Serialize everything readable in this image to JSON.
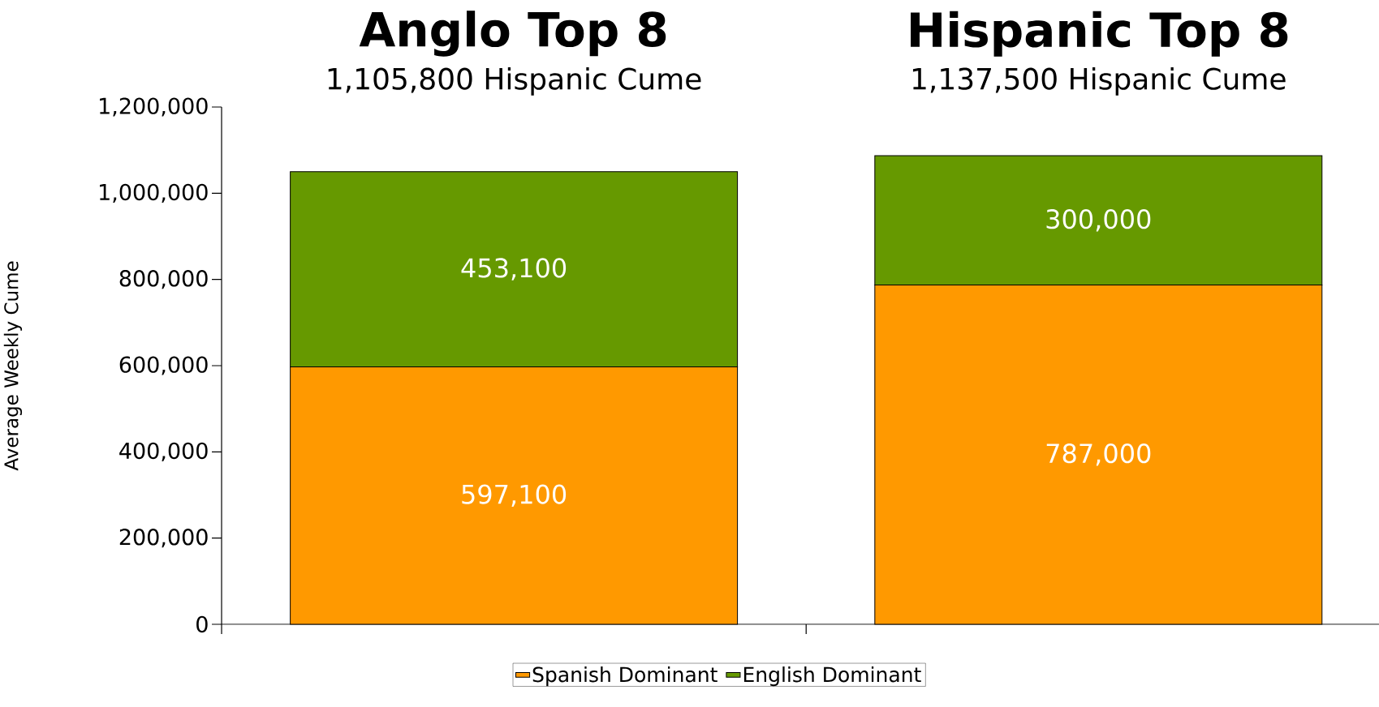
{
  "chart_data": {
    "type": "bar",
    "stacked": true,
    "categories": [
      "Anglo Top 8",
      "Hispanic Top 8"
    ],
    "annotations": [
      "1,105,800 Hispanic Cume",
      "1,137,500 Hispanic Cume"
    ],
    "ylabel": "Average Weekly Cume",
    "series": [
      {
        "name": "Spanish Dominant",
        "color": "#ff9900",
        "values": [
          597100,
          787000
        ],
        "value_labels": [
          "597,100",
          "787,000"
        ]
      },
      {
        "name": "English Dominant",
        "color": "#669900",
        "values": [
          453100,
          300000
        ],
        "value_labels": [
          "453,100",
          "300,000"
        ]
      }
    ],
    "ylim": [
      0,
      1200000
    ],
    "yticks": [
      {
        "value": 0,
        "label": "0"
      },
      {
        "value": 200000,
        "label": "200,000"
      },
      {
        "value": 400000,
        "label": "400,000"
      },
      {
        "value": 600000,
        "label": "600,000"
      },
      {
        "value": 800000,
        "label": "800,000"
      },
      {
        "value": 1000000,
        "label": "1,000,000"
      },
      {
        "value": 1200000,
        "label": "1,200,000"
      }
    ],
    "grid": false,
    "legend": "bottom"
  }
}
